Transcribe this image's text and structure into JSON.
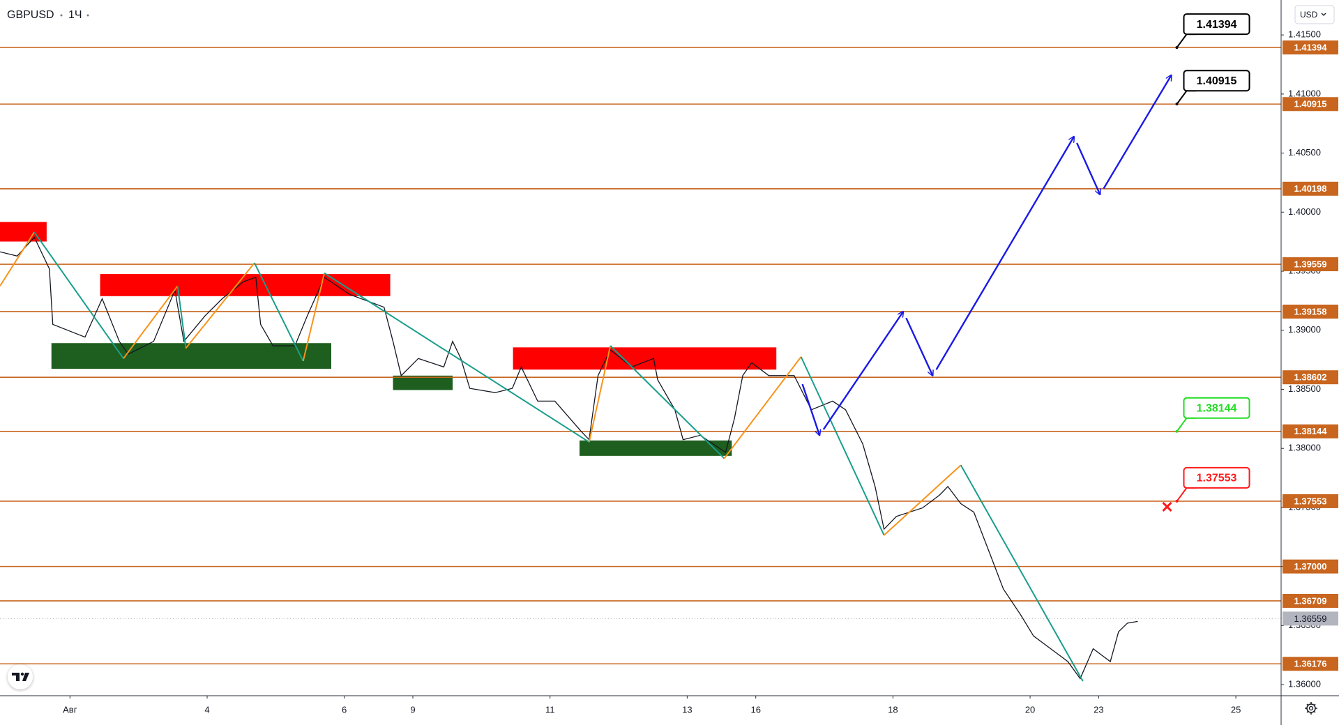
{
  "chart_data": {
    "type": "line",
    "title": "GBPUSD",
    "interval": "1Ч",
    "currency": "USD",
    "x": [
      -1.02,
      -0.77,
      -0.52,
      -0.3,
      -0.25,
      0.22,
      0.47,
      0.72,
      0.85,
      1.22,
      1.53,
      1.66,
      1.97,
      2.22,
      2.53,
      2.71,
      2.78,
      2.96,
      3.28,
      3.46,
      3.71,
      4.08,
      4.58,
      4.71,
      4.83,
      5.08,
      5.45,
      5.58,
      5.7,
      5.83,
      6.2,
      6.45,
      6.58,
      6.82,
      7.07,
      7.45,
      7.57,
      7.7,
      7.88,
      8.19,
      8.51,
      8.57,
      8.82,
      8.94,
      9.19,
      9.56,
      9.69,
      9.81,
      9.94,
      10.19,
      10.56,
      10.81,
      11.12,
      11.31,
      11.56,
      11.74,
      11.87,
      12.05,
      12.43,
      12.68,
      12.8,
      12.99,
      13.18,
      13.42,
      13.61,
      13.86,
      14.05,
      14.3,
      14.55,
      14.73,
      14.92,
      15.17,
      15.29,
      15.42,
      15.57
    ],
    "series": [
      {
        "color": "#131722",
        "values": [
          1.39664,
          1.39628,
          1.39787,
          1.3952,
          1.3905,
          1.38942,
          1.39267,
          1.38906,
          1.38797,
          1.38906,
          1.39339,
          1.38906,
          1.39122,
          1.39267,
          1.39411,
          1.39448,
          1.3905,
          1.38869,
          1.38869,
          1.39122,
          1.39448,
          1.39303,
          1.39195,
          1.38906,
          1.38616,
          1.38761,
          1.38689,
          1.38906,
          1.38761,
          1.38508,
          1.38472,
          1.38508,
          1.38689,
          1.384,
          1.384,
          1.38147,
          1.38074,
          1.38616,
          1.38833,
          1.38689,
          1.38761,
          1.3858,
          1.38327,
          1.38074,
          1.38111,
          1.37966,
          1.38255,
          1.38616,
          1.38725,
          1.38616,
          1.38616,
          1.38327,
          1.384,
          1.38327,
          1.38038,
          1.37677,
          1.37316,
          1.37424,
          1.37496,
          1.37605,
          1.37677,
          1.37532,
          1.3746,
          1.37099,
          1.3681,
          1.36593,
          1.36412,
          1.36304,
          1.36195,
          1.36051,
          1.36304,
          1.36195,
          1.36448,
          1.36521,
          1.36535
        ]
      }
    ],
    "xlim": [
      -1.02,
      17.66
    ],
    "ylim": [
      1.35906,
      1.41796
    ],
    "xticks": [
      {
        "value": 0,
        "label": "Авг"
      },
      {
        "value": 2,
        "label": "4"
      },
      {
        "value": 4,
        "label": "6"
      },
      {
        "value": 5,
        "label": "9"
      },
      {
        "value": 7,
        "label": "11"
      },
      {
        "value": 9,
        "label": "13"
      },
      {
        "value": 10,
        "label": "16"
      },
      {
        "value": 12,
        "label": "18"
      },
      {
        "value": 14,
        "label": "20"
      },
      {
        "value": 15,
        "label": "23"
      },
      {
        "value": 17,
        "label": "25"
      }
    ],
    "yticks": [
      {
        "value": 1.36,
        "label": "1.36000"
      },
      {
        "value": 1.365,
        "label": "1.36500"
      },
      {
        "value": 1.37,
        "label": "1.37000"
      },
      {
        "value": 1.375,
        "label": "1.37500"
      },
      {
        "value": 1.38,
        "label": "1.38000"
      },
      {
        "value": 1.385,
        "label": "1.38500"
      },
      {
        "value": 1.39,
        "label": "1.39000"
      },
      {
        "value": 1.395,
        "label": "1.39500"
      },
      {
        "value": 1.4,
        "label": "1.40000"
      },
      {
        "value": 1.405,
        "label": "1.40500"
      },
      {
        "value": 1.41,
        "label": "1.41000"
      },
      {
        "value": 1.415,
        "label": "1.41500"
      }
    ],
    "levels": [
      1.41394,
      1.40915,
      1.40198,
      1.39559,
      1.39158,
      1.38602,
      1.38144,
      1.37553,
      {
        "value": 1.37,
        "label": "1.37000"
      },
      1.36709,
      1.36176
    ],
    "level_color": "#c8651e",
    "current_price": 1.36559,
    "current_color": "#b2b5be",
    "zones": [
      {
        "x": [
          -1.02,
          -0.34
        ],
        "y": [
          1.39751,
          1.39917
        ],
        "color": "#ff0000"
      },
      {
        "x": [
          0.44,
          4.67
        ],
        "y": [
          1.39289,
          1.39476
        ],
        "color": "#ff0000"
      },
      {
        "x": [
          -0.27,
          3.81
        ],
        "y": [
          1.38674,
          1.38891
        ],
        "color": "#1e5e1e"
      },
      {
        "x": [
          4.71,
          5.58
        ],
        "y": [
          1.38494,
          1.38616
        ],
        "color": "#1e5e1e"
      },
      {
        "x": [
          6.46,
          10.3
        ],
        "y": [
          1.38667,
          1.38855
        ],
        "color": "#ff0000"
      },
      {
        "x": [
          7.43,
          9.65
        ],
        "y": [
          1.37937,
          1.38067
        ],
        "color": "#1e5e1e"
      }
    ],
    "zigzag": {
      "x": [
        -1.02,
        -0.52,
        0.78,
        1.57,
        1.69,
        2.69,
        3.4,
        3.71,
        7.57,
        7.88,
        9.54,
        10.66,
        11.87,
        12.99,
        14.77
      ],
      "y": [
        1.39375,
        1.39831,
        1.38761,
        1.39375,
        1.38848,
        1.3957,
        1.38739,
        1.39484,
        1.38053,
        1.38869,
        1.37915,
        1.38775,
        1.37265,
        1.37858,
        1.36029
      ],
      "up_color": "#f7931a",
      "down_color": "#199e8c"
    },
    "forecast": {
      "x": [
        10.68,
        10.93,
        12.15,
        12.58,
        14.64,
        15.02,
        16.06
      ],
      "y": [
        1.38544,
        1.38111,
        1.39158,
        1.38616,
        1.4064,
        1.40149,
        1.4116
      ],
      "color": "#1a1ae6"
    },
    "callouts": [
      {
        "value": 1.41394,
        "x": 16.14,
        "color": "#000000",
        "cancelled": false
      },
      {
        "value": 1.40915,
        "x": 16.14,
        "color": "#000000",
        "cancelled": false
      },
      {
        "value": 1.38144,
        "x": 16.14,
        "color": "#22dd22",
        "cancelled": false
      },
      {
        "value": 1.37553,
        "x": 16.14,
        "color": "#ff1a1a",
        "cancelled": true
      }
    ]
  }
}
